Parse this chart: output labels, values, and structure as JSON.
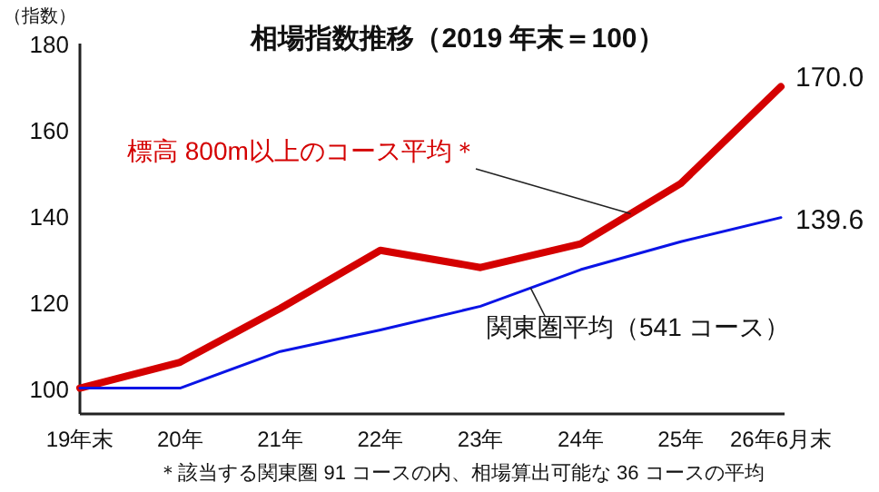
{
  "chart_data": {
    "type": "line",
    "title": "相場指数推移（2019 年末＝100）",
    "ylabel": "（指数）",
    "categories": [
      "19年末",
      "20年",
      "21年",
      "22年",
      "23年",
      "24年",
      "25年",
      "26年6月末"
    ],
    "series": [
      {
        "name": "標高 800m以上のコース平均＊",
        "color": "#d40000",
        "values": [
          100,
          106,
          118.5,
          132,
          128,
          133.5,
          147.5,
          170.0
        ],
        "value_labels": [
          null,
          null,
          null,
          null,
          null,
          null,
          null,
          "170.0"
        ]
      },
      {
        "name": "関東圏平均（541 コース）",
        "color": "#0a14e6",
        "values": [
          100,
          100,
          108.5,
          113.5,
          119,
          127.5,
          134,
          139.6
        ],
        "value_labels": [
          null,
          null,
          null,
          null,
          null,
          null,
          null,
          "139.6"
        ]
      }
    ],
    "ylim": [
      94,
      180
    ],
    "yticks": [
      100,
      120,
      140,
      160,
      180
    ],
    "annotations": [
      "＊該当する関東圏 91 コースの内、相場算出可能な 36 コースの平均"
    ]
  }
}
